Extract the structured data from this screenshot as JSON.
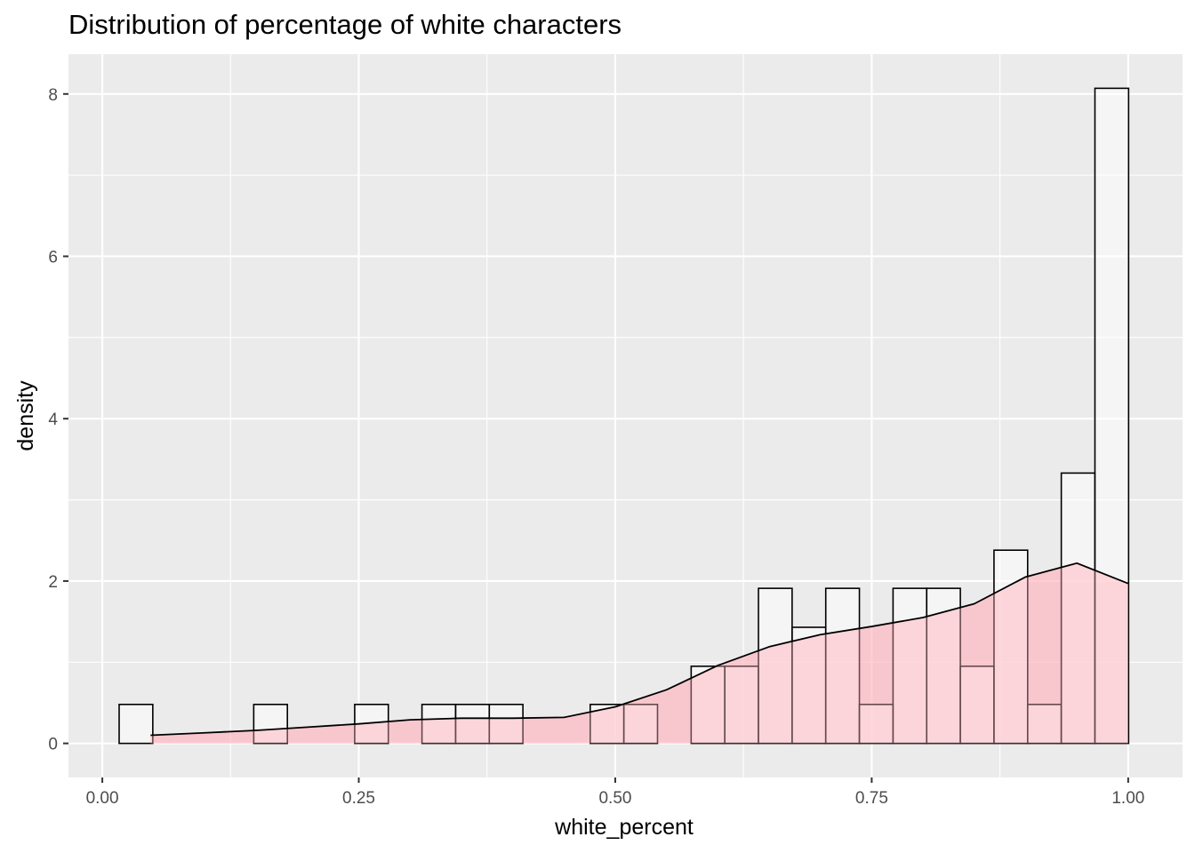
{
  "chart_data": {
    "type": "bar",
    "title": "Distribution of percentage of white characters",
    "xlabel": "white_percent",
    "ylabel": "density",
    "xlim": [
      -0.033,
      1.053
    ],
    "ylim": [
      -0.42,
      8.49
    ],
    "x_ticks": [
      {
        "value": 0.0,
        "label": "0.00"
      },
      {
        "value": 0.25,
        "label": "0.25"
      },
      {
        "value": 0.5,
        "label": "0.50"
      },
      {
        "value": 0.75,
        "label": "0.75"
      },
      {
        "value": 1.0,
        "label": "1.00"
      }
    ],
    "y_ticks": [
      {
        "value": 0,
        "label": "0"
      },
      {
        "value": 2,
        "label": "2"
      },
      {
        "value": 4,
        "label": "4"
      },
      {
        "value": 6,
        "label": "6"
      },
      {
        "value": 8,
        "label": "8"
      }
    ],
    "grid": true,
    "histogram": {
      "bin_width": 0.0328,
      "start": 0.0164,
      "values": [
        0.48,
        0,
        0,
        0,
        0.48,
        0,
        0,
        0.48,
        0,
        0.48,
        0.48,
        0.48,
        0,
        0,
        0.48,
        0.48,
        0,
        0.95,
        0.95,
        1.91,
        1.43,
        1.91,
        0.48,
        1.91,
        1.91,
        0.95,
        2.38,
        0.48,
        3.33,
        8.07
      ],
      "fill": "#ffffff",
      "outline": "#000000"
    },
    "density": {
      "x": [
        0.047,
        0.1,
        0.15,
        0.2,
        0.25,
        0.3,
        0.35,
        0.4,
        0.45,
        0.5,
        0.55,
        0.6,
        0.65,
        0.7,
        0.75,
        0.8,
        0.85,
        0.9,
        0.95,
        1.0
      ],
      "y": [
        0.1,
        0.13,
        0.16,
        0.2,
        0.24,
        0.29,
        0.31,
        0.31,
        0.32,
        0.45,
        0.66,
        0.96,
        1.19,
        1.34,
        1.44,
        1.55,
        1.72,
        2.05,
        2.22,
        1.97
      ],
      "fill": "#ffb6c1",
      "line": "#000000"
    },
    "panel_background": "#ebebeb",
    "grid_color": "#ffffff"
  }
}
